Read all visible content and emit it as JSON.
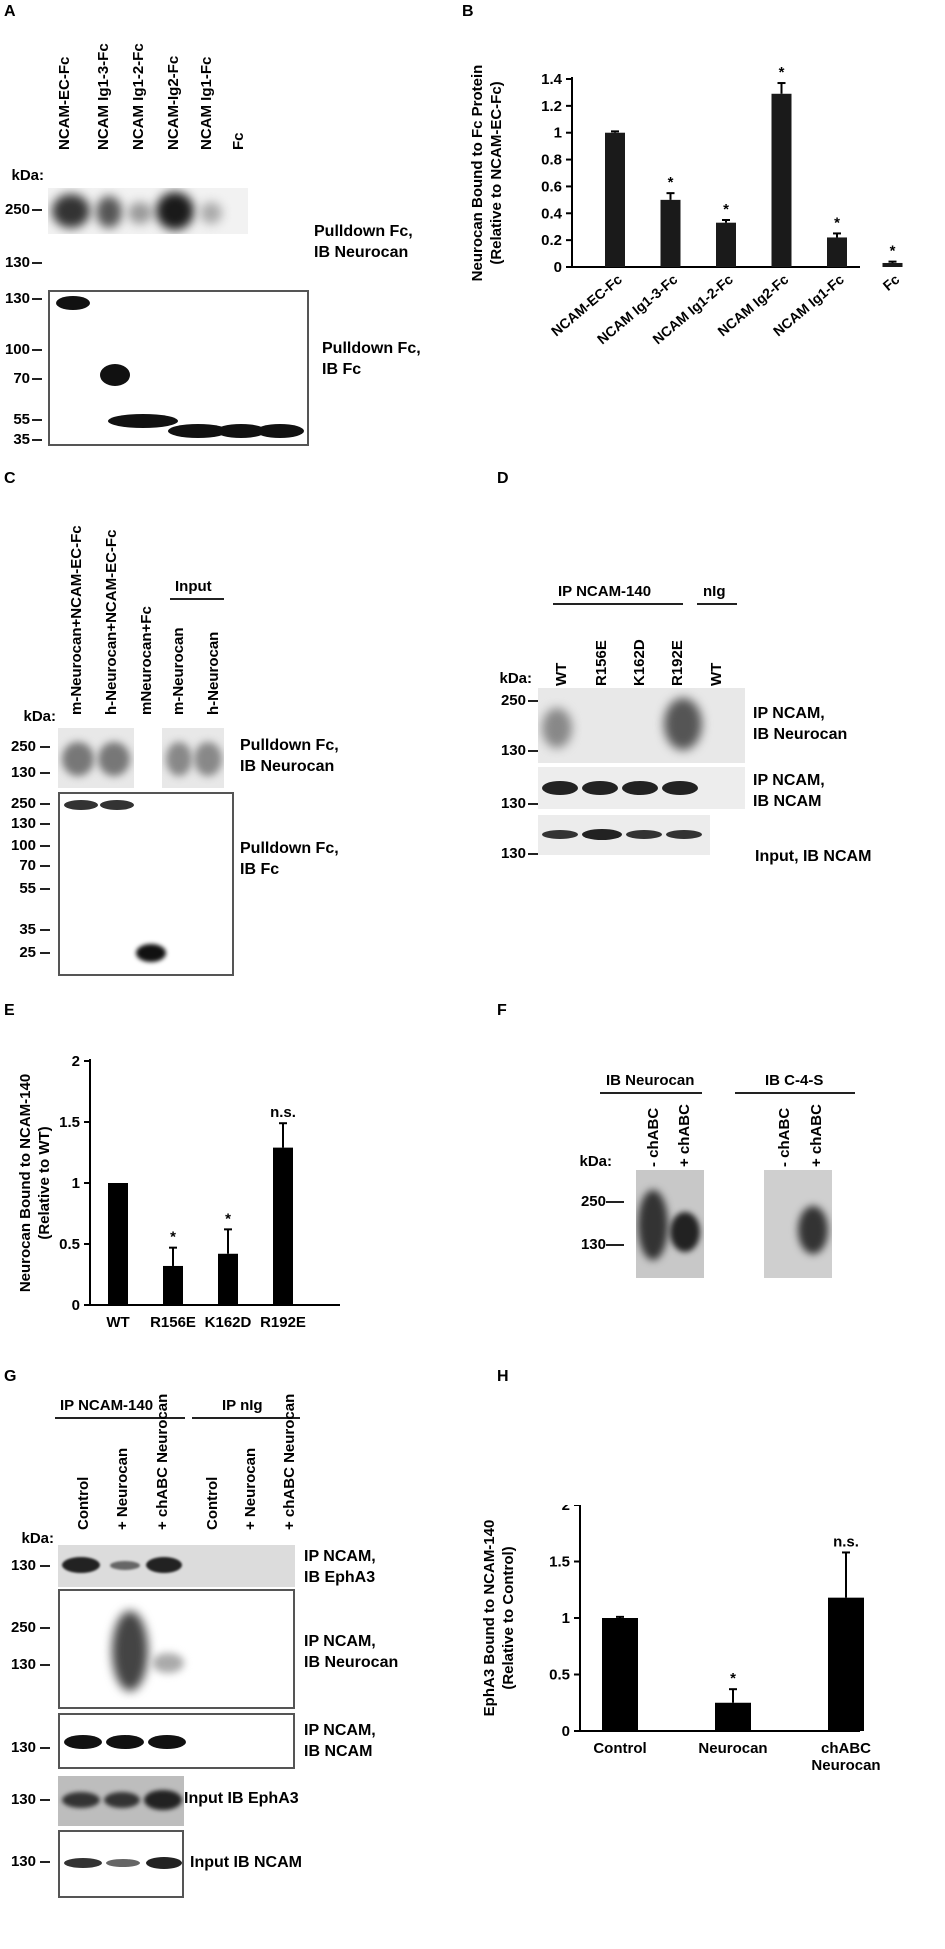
{
  "panels": {
    "A": {
      "label": "A",
      "lanes": [
        "NCAM-EC-Fc",
        "NCAM Ig1-3-Fc",
        "NCAM Ig1-2-Fc",
        "NCAM-Ig2-Fc",
        "NCAM Ig1-Fc",
        "Fc"
      ],
      "kda_title": "kDa:",
      "top_markers": [
        "250",
        "130"
      ],
      "bottom_markers": [
        "130",
        "100",
        "70",
        "55",
        "35"
      ],
      "top_label": [
        "Pulldown Fc,",
        "IB Neurocan"
      ],
      "bottom_label": [
        "Pulldown Fc,",
        "IB Fc"
      ]
    },
    "B": {
      "label": "B"
    },
    "C": {
      "label": "C",
      "lanes": [
        "m-Neurocan+NCAM-EC-Fc",
        "h-Neurocan+NCAM-EC-Fc",
        "mNeurocan+Fc",
        "m-Neurocan",
        "h-Neurocan"
      ],
      "input_header": "Input",
      "kda_title": "kDa:",
      "top_markers": [
        "250",
        "130"
      ],
      "bottom_markers": [
        "250",
        "130",
        "100",
        "70",
        "55",
        "35",
        "25"
      ],
      "top_label": [
        "Pulldown Fc,",
        "IB Neurocan"
      ],
      "bottom_label": [
        "Pulldown Fc,",
        "IB Fc"
      ]
    },
    "D": {
      "label": "D",
      "group1": "IP NCAM-140",
      "group2": "nIg",
      "lanes": [
        "WT",
        "R156E",
        "K162D",
        "R192E",
        "WT"
      ],
      "kda_title": "kDa:",
      "markers1": [
        "250",
        "130"
      ],
      "marker2": "130",
      "marker3": "130",
      "label1": [
        "IP NCAM,",
        "IB Neurocan"
      ],
      "label2": [
        "IP NCAM,",
        "IB NCAM"
      ],
      "label3": "Input, IB NCAM"
    },
    "E": {
      "label": "E"
    },
    "F": {
      "label": "F",
      "group1": "IB Neurocan",
      "group2": "IB C-4-S",
      "lanes": [
        "- chABC",
        "+ chABC",
        "- chABC",
        "+ chABC"
      ],
      "kda_title": "kDa:",
      "markers": [
        "250",
        "130"
      ]
    },
    "G": {
      "label": "G",
      "group1": "IP NCAM-140",
      "group2": "IP nIg",
      "lanes": [
        "Control",
        "+ Neurocan",
        "+ chABC Neurocan",
        "Control",
        "+ Neurocan",
        "+ chABC Neurocan"
      ],
      "kda_title": "kDa:",
      "marker_ephA3": "130",
      "markers_neurocan": [
        "250",
        "130"
      ],
      "marker_ncam": "130",
      "marker_input_ephA3": "130",
      "marker_input_ncam": "130",
      "label_ephA3": [
        "IP NCAM,",
        "IB EphA3"
      ],
      "label_neurocan": [
        "IP NCAM,",
        "IB Neurocan"
      ],
      "label_ncam": [
        "IP NCAM,",
        "IB NCAM"
      ],
      "label_input_ephA3": "Input IB EphA3",
      "label_input_ncam": "Input IB NCAM"
    },
    "H": {
      "label": "H"
    }
  },
  "chart_data": [
    {
      "panel": "B",
      "type": "bar",
      "categories": [
        "NCAM-EC-Fc",
        "NCAM Ig1-3-Fc",
        "NCAM Ig1-2-Fc",
        "NCAM Ig2-Fc",
        "NCAM Ig1-Fc",
        "Fc"
      ],
      "values": [
        1.0,
        0.5,
        0.33,
        1.29,
        0.22,
        0.03
      ],
      "errors": [
        0.01,
        0.05,
        0.02,
        0.08,
        0.03,
        0.01
      ],
      "significance": [
        "",
        "*",
        "*",
        "*",
        "*",
        "*"
      ],
      "ylabel": [
        "Neurocan Bound to Fc Protein",
        "(Relative to NCAM-EC-Fc)"
      ],
      "yticks": [
        "0",
        "0.2",
        "0.4",
        "0.6",
        "0.8",
        "1",
        "1.2",
        "1.4"
      ],
      "ylim": [
        0,
        1.4
      ],
      "color": "#1a1a1a"
    },
    {
      "panel": "E",
      "type": "bar",
      "categories": [
        "WT",
        "R156E",
        "K162D",
        "R192E"
      ],
      "values": [
        1.0,
        0.32,
        0.42,
        1.29
      ],
      "errors": [
        0,
        0.15,
        0.2,
        0.2
      ],
      "significance": [
        "",
        "*",
        "*",
        "n.s."
      ],
      "ylabel": [
        "Neurocan Bound to NCAM-140",
        "(Relative to WT)"
      ],
      "yticks": [
        "0",
        "0.5",
        "1",
        "1.5",
        "2"
      ],
      "ylim": [
        0,
        2
      ],
      "color": "#000000"
    },
    {
      "panel": "H",
      "type": "bar",
      "categories": [
        "Control",
        "Neurocan",
        "chABC\nNeurocan"
      ],
      "values": [
        1.0,
        0.25,
        1.18
      ],
      "errors": [
        0.01,
        0.12,
        0.4
      ],
      "significance": [
        "",
        "*",
        "n.s."
      ],
      "ylabel": [
        "EphA3 Bound to NCAM-140",
        "(Relative to Control)"
      ],
      "yticks": [
        "0",
        "0.5",
        "1",
        "1.5",
        "2"
      ],
      "ylim": [
        0,
        2
      ],
      "color": "#000000"
    }
  ]
}
